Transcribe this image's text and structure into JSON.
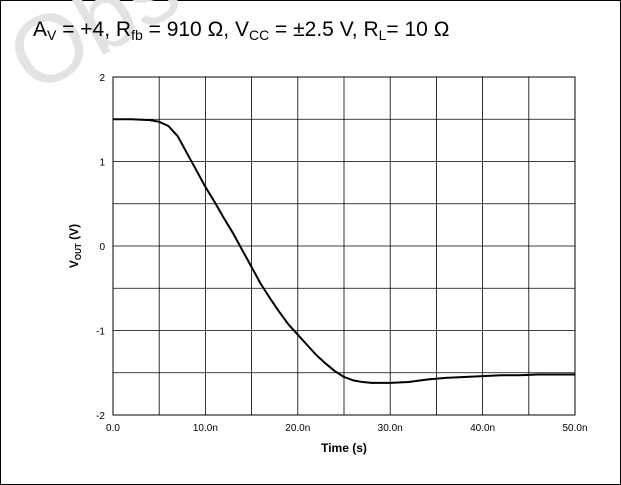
{
  "title": {
    "av_label": "A",
    "av_sub": "V",
    "av_value": " = +4, ",
    "rfb_label": "R",
    "rfb_sub": "fb",
    "rfb_value": " = 910 Ω, ",
    "vcc_label": "V",
    "vcc_sub": "CC",
    "vcc_value": " = ±2.5 V, ",
    "rl_label": "R",
    "rl_sub": "L",
    "rl_value": "= 10 Ω"
  },
  "watermark": "Obsolete Product",
  "chart_data": {
    "type": "line",
    "title": "AV = +4, Rfb = 910 Ω, VCC = ±2.5 V, RL= 10 Ω",
    "xlabel": "Time (s)",
    "ylabel_main": "V",
    "ylabel_sub": "OUT",
    "ylabel_unit": " (V)",
    "xlim": [
      0,
      50
    ],
    "ylim": [
      -2,
      2
    ],
    "grid": true,
    "x_ticks": [
      0,
      5,
      10,
      15,
      20,
      25,
      30,
      35,
      40,
      45,
      50
    ],
    "x_tick_labels": [
      "0.0",
      "",
      "10.0n",
      "",
      "20.0n",
      "",
      "30.0n",
      "",
      "40.0n",
      "",
      "50.0n"
    ],
    "y_ticks": [
      -2,
      -1.5,
      -1,
      -0.5,
      0,
      0.5,
      1,
      1.5,
      2
    ],
    "y_tick_labels": [
      "-2",
      "",
      "-1",
      "",
      "0",
      "",
      "1",
      "",
      "2"
    ],
    "series": [
      {
        "color": "#000000",
        "x": [
          0,
          2,
          4,
          5,
          6,
          7,
          8,
          9,
          10,
          11,
          12,
          13,
          14,
          15,
          16,
          17,
          18,
          19,
          20,
          21,
          22,
          23,
          24,
          25,
          26,
          27,
          28,
          29,
          30,
          32,
          34,
          36,
          38,
          40,
          42,
          44,
          46,
          48,
          50
        ],
        "y": [
          1.5,
          1.5,
          1.49,
          1.47,
          1.42,
          1.3,
          1.1,
          0.9,
          0.7,
          0.52,
          0.33,
          0.15,
          -0.05,
          -0.25,
          -0.45,
          -0.62,
          -0.78,
          -0.93,
          -1.05,
          -1.17,
          -1.29,
          -1.39,
          -1.48,
          -1.55,
          -1.59,
          -1.61,
          -1.62,
          -1.62,
          -1.62,
          -1.61,
          -1.58,
          -1.56,
          -1.55,
          -1.54,
          -1.53,
          -1.53,
          -1.52,
          -1.52,
          -1.52
        ]
      }
    ]
  }
}
